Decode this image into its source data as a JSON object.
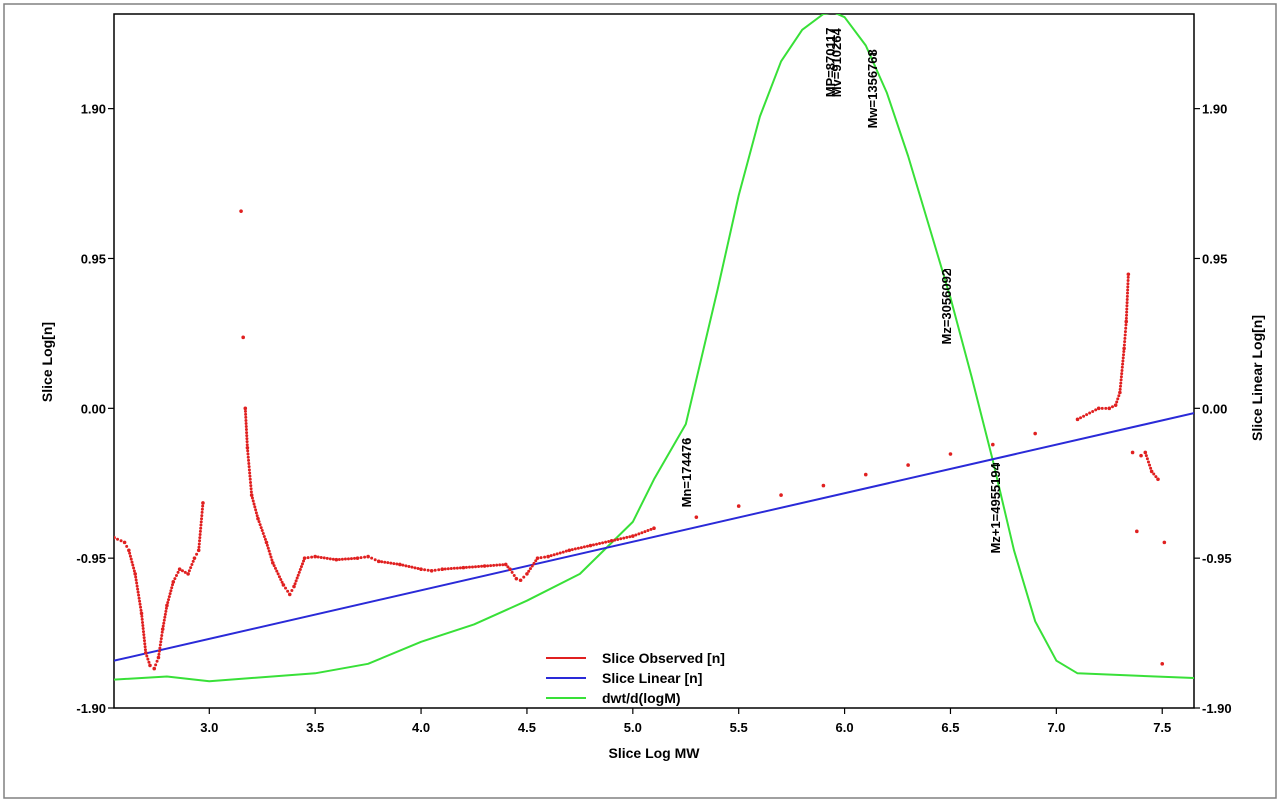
{
  "chart_data": {
    "type": "line",
    "xlabel": "Slice Log MW",
    "ylabel_left": "Slice Log[n]",
    "ylabel_right": "Slice Linear Log[n]",
    "xlim": [
      2.55,
      7.65
    ],
    "ylim": [
      -1.9,
      2.5
    ],
    "x_ticks": [
      {
        "v": 3.0,
        "label": "3.0"
      },
      {
        "v": 3.5,
        "label": "3.5"
      },
      {
        "v": 4.0,
        "label": "4.0"
      },
      {
        "v": 4.5,
        "label": "4.5"
      },
      {
        "v": 5.0,
        "label": "5.0"
      },
      {
        "v": 5.5,
        "label": "5.5"
      },
      {
        "v": 6.0,
        "label": "6.0"
      },
      {
        "v": 6.5,
        "label": "6.5"
      },
      {
        "v": 7.0,
        "label": "7.0"
      },
      {
        "v": 7.5,
        "label": "7.5"
      }
    ],
    "y_ticks": [
      {
        "v": 1.9,
        "label": "1.90"
      },
      {
        "v": 0.95,
        "label": "0.95"
      },
      {
        "v": 0.0,
        "label": "0.00"
      },
      {
        "v": -0.95,
        "label": "-0.95"
      },
      {
        "v": -1.9,
        "label": "-1.90"
      }
    ],
    "legend_position": "bottom-center",
    "series": [
      {
        "name": "Slice Observed [n]",
        "color": "#e02020",
        "style": "dotted",
        "x": [
          2.55,
          2.6,
          2.62,
          2.65,
          2.68,
          2.7,
          2.72,
          2.74,
          2.76,
          2.78,
          2.8,
          2.83,
          2.86,
          2.9,
          2.93,
          2.95,
          2.97,
          3.15,
          3.16,
          3.17,
          3.18,
          3.2,
          3.23,
          3.27,
          3.3,
          3.35,
          3.38,
          3.4,
          3.45,
          3.5,
          3.6,
          3.7,
          3.75,
          3.8,
          3.9,
          4.0,
          4.05,
          4.1,
          4.2,
          4.3,
          4.4,
          4.42,
          4.45,
          4.47,
          4.5,
          4.55,
          4.6,
          4.7,
          4.8,
          4.9,
          5.0,
          5.1,
          5.3,
          5.5,
          5.7,
          5.9,
          6.1,
          6.3,
          6.5,
          6.7,
          6.9,
          7.1,
          7.2,
          7.25,
          7.28,
          7.3,
          7.32,
          7.33,
          7.34,
          7.36,
          7.38,
          7.4,
          7.42,
          7.45,
          7.48,
          7.5,
          7.51
        ],
        "y": [
          -0.82,
          -0.85,
          -0.9,
          -1.05,
          -1.3,
          -1.55,
          -1.63,
          -1.65,
          -1.58,
          -1.4,
          -1.25,
          -1.1,
          -1.02,
          -1.05,
          -0.95,
          -0.9,
          -0.6,
          1.25,
          0.45,
          0.0,
          -0.25,
          -0.55,
          -0.7,
          -0.85,
          -0.98,
          -1.12,
          -1.18,
          -1.13,
          -0.95,
          -0.94,
          -0.96,
          -0.95,
          -0.94,
          -0.97,
          -0.99,
          -1.02,
          -1.03,
          -1.02,
          -1.01,
          -1.0,
          -0.99,
          -1.02,
          -1.08,
          -1.09,
          -1.05,
          -0.95,
          -0.94,
          -0.9,
          -0.87,
          -0.84,
          -0.81,
          -0.76,
          -0.69,
          -0.62,
          -0.55,
          -0.49,
          -0.42,
          -0.36,
          -0.29,
          -0.23,
          -0.16,
          -0.07,
          0.0,
          0.0,
          0.02,
          0.1,
          0.38,
          0.55,
          0.85,
          -0.28,
          -0.78,
          -0.3,
          -0.28,
          -0.4,
          -0.45,
          -1.62,
          -0.85
        ]
      },
      {
        "name": "Slice Linear [n]",
        "color": "#2a2ad8",
        "style": "line",
        "x": [
          2.55,
          7.65
        ],
        "y": [
          -1.6,
          -0.03
        ]
      },
      {
        "name": "dwt/d(logM)",
        "color": "#38e038",
        "style": "line",
        "x": [
          2.55,
          2.8,
          3.0,
          3.5,
          3.75,
          4.0,
          4.25,
          4.5,
          4.75,
          5.0,
          5.1,
          5.25,
          5.4,
          5.5,
          5.6,
          5.7,
          5.8,
          5.9,
          5.95,
          6.0,
          6.1,
          6.2,
          6.3,
          6.4,
          6.5,
          6.6,
          6.7,
          6.8,
          6.9,
          7.0,
          7.1,
          7.65
        ],
        "y": [
          -1.72,
          -1.7,
          -1.73,
          -1.68,
          -1.62,
          -1.48,
          -1.37,
          -1.22,
          -1.05,
          -0.72,
          -0.45,
          -0.1,
          0.75,
          1.35,
          1.85,
          2.2,
          2.4,
          2.5,
          2.51,
          2.48,
          2.3,
          2.0,
          1.6,
          1.15,
          0.7,
          0.2,
          -0.33,
          -0.9,
          -1.35,
          -1.6,
          -1.68,
          -1.71
        ]
      }
    ],
    "annotations": [
      {
        "label": "Mn=174476",
        "x": 5.25,
        "y": -0.2
      },
      {
        "label": "MP=870117",
        "x": 5.93,
        "y": 2.4
      },
      {
        "label": "Mv=910264",
        "x": 5.96,
        "y": 2.4
      },
      {
        "label": "Mw=1356768",
        "x": 6.13,
        "y": 2.25
      },
      {
        "label": "Mz=3056092",
        "x": 6.48,
        "y": 0.88
      },
      {
        "label": "Mz+1=4955194",
        "x": 6.71,
        "y": -0.35
      }
    ]
  }
}
